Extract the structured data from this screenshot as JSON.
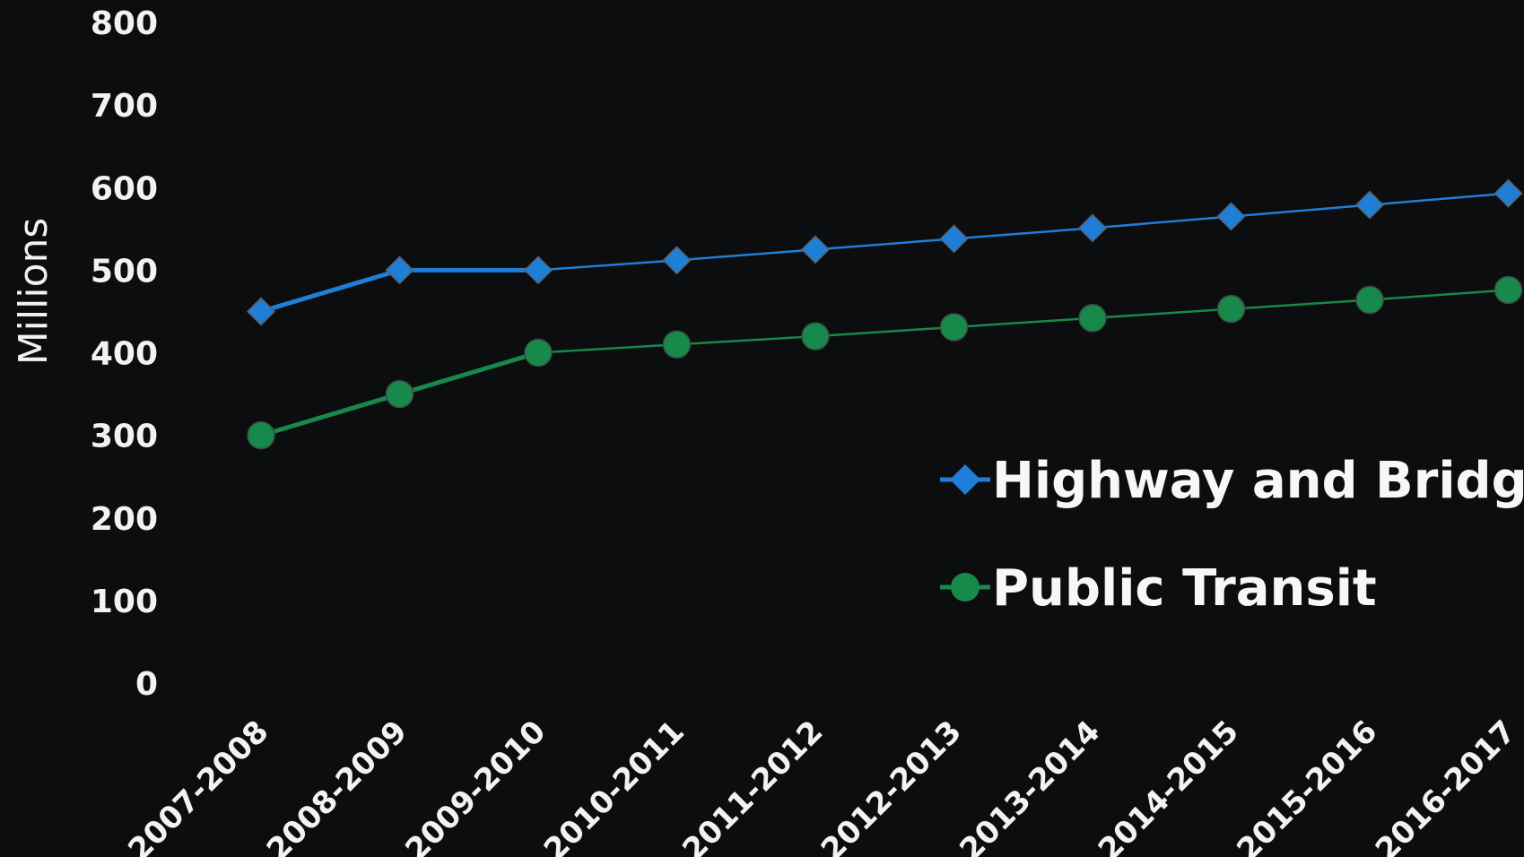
{
  "chart_data": {
    "type": "line",
    "title": "",
    "xlabel": "",
    "ylabel": "Millions",
    "ylim": [
      0,
      800
    ],
    "yticks": [
      "0",
      "100",
      "200",
      "300",
      "400",
      "500",
      "600",
      "700",
      "800"
    ],
    "grid": false,
    "legend_position": "right",
    "categories": [
      "2007-2008",
      "2008-2009",
      "2009-2010",
      "2010-2011",
      "2011-2012",
      "2012-2013",
      "2013-2014",
      "2014-2015",
      "2015-2016",
      "2016-2017"
    ],
    "series": [
      {
        "name": "Highway and Bridge",
        "marker": "diamond",
        "color": "#1f7fd6",
        "values": [
          450,
          500,
          500,
          512,
          525,
          538,
          551,
          565,
          579,
          593
        ]
      },
      {
        "name": "Public Transit",
        "marker": "circle",
        "color": "#17894a",
        "values": [
          300,
          350,
          400,
          410,
          420,
          431,
          442,
          453,
          464,
          476
        ]
      }
    ]
  }
}
